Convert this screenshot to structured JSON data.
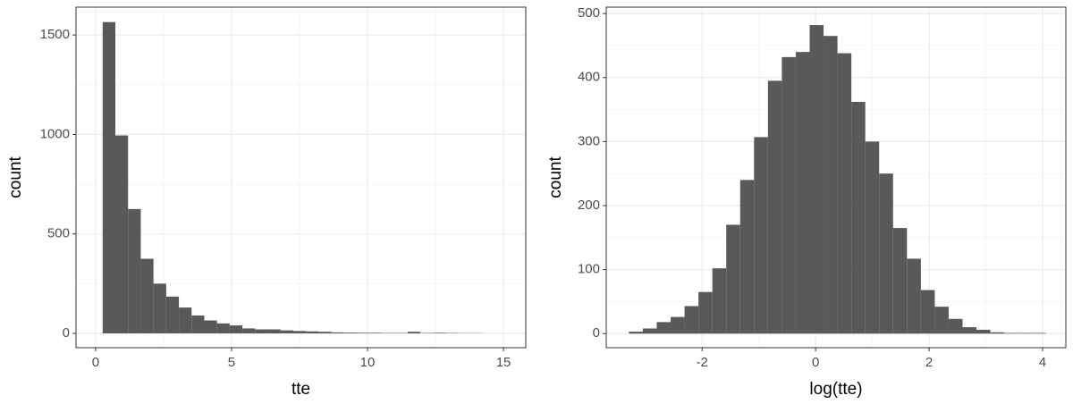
{
  "chart_data": [
    {
      "type": "histogram",
      "xlabel": "tte",
      "ylabel": "count",
      "color": "#595959",
      "grid": true,
      "bins": [
        0.26,
        0.727,
        1.195,
        1.662,
        2.129,
        2.597,
        3.064,
        3.531,
        3.998,
        4.466,
        4.933,
        5.4,
        5.868,
        6.335,
        6.802,
        7.27,
        7.737,
        8.204,
        8.671,
        9.139,
        9.606,
        10.073,
        10.541,
        11.008,
        11.475,
        11.943,
        12.41,
        12.877,
        13.344,
        13.812,
        14.279
      ],
      "counts": [
        1565,
        995,
        625,
        375,
        250,
        185,
        130,
        90,
        65,
        50,
        40,
        25,
        20,
        20,
        15,
        12,
        10,
        8,
        5,
        4,
        3,
        3,
        2,
        2,
        8,
        2,
        3,
        2,
        1,
        1
      ],
      "xlim": [
        -0.72,
        15.82
      ],
      "ylim": [
        -72,
        1640
      ],
      "xticks": [
        0,
        5,
        10,
        15
      ],
      "yticks": [
        0,
        500,
        1000,
        1500
      ]
    },
    {
      "type": "histogram",
      "xlabel": "log(tte)",
      "ylabel": "count",
      "color": "#595959",
      "grid": true,
      "bins": [
        -3.29,
        -3.045,
        -2.8,
        -2.555,
        -2.31,
        -2.065,
        -1.82,
        -1.575,
        -1.33,
        -1.085,
        -0.84,
        -0.595,
        -0.35,
        -0.105,
        0.14,
        0.385,
        0.63,
        0.875,
        1.12,
        1.365,
        1.61,
        1.855,
        2.1,
        2.345,
        2.59,
        2.835,
        3.08,
        3.325,
        3.57,
        3.815,
        4.06
      ],
      "counts": [
        3,
        8,
        18,
        26,
        43,
        65,
        102,
        170,
        240,
        307,
        395,
        432,
        440,
        482,
        465,
        438,
        362,
        300,
        250,
        165,
        117,
        68,
        42,
        23,
        10,
        6,
        2,
        1,
        1,
        1
      ],
      "xlim": [
        -3.69,
        4.41
      ],
      "ylim": [
        -22,
        510
      ],
      "xticks": [
        -2,
        0,
        2,
        4
      ],
      "yticks": [
        0,
        100,
        200,
        300,
        400,
        500
      ]
    }
  ]
}
